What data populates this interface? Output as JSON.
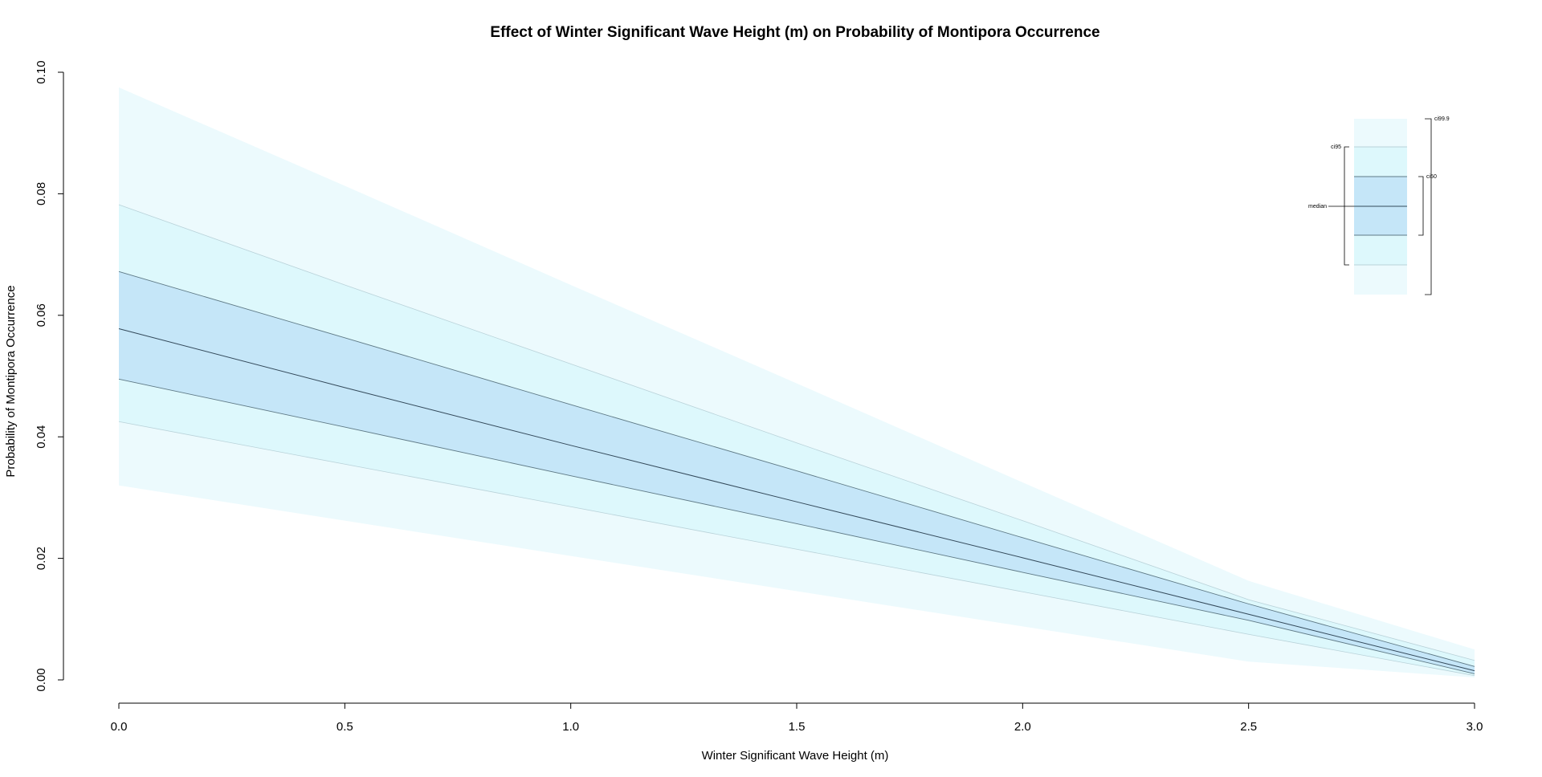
{
  "chart_data": {
    "type": "area",
    "title": "Effect of Winter Significant Wave Height (m) on Probability of Montipora Occurrence",
    "xlabel": "Winter Significant Wave Height (m)",
    "ylabel": "Probability of Montipora Occurrence",
    "xlim": [
      0.0,
      3.0
    ],
    "ylim": [
      0.0,
      0.1
    ],
    "grid": false,
    "legend_position": "top-right",
    "x_ticks": [
      "0.0",
      "0.5",
      "1.0",
      "1.5",
      "2.0",
      "2.5",
      "3.0"
    ],
    "y_ticks": [
      "0.00",
      "0.02",
      "0.04",
      "0.06",
      "0.08",
      "0.10"
    ],
    "x": [
      0.0,
      0.5,
      1.0,
      1.5,
      2.0,
      2.5,
      3.0
    ],
    "median": [
      0.0578,
      0.0481,
      0.0386,
      0.0293,
      0.0201,
      0.0108,
      0.0015
    ],
    "bands": [
      {
        "name": "ci99.9",
        "lower": [
          0.032,
          0.0262,
          0.0204,
          0.0146,
          0.0088,
          0.003,
          0.0004
        ],
        "upper": [
          0.0975,
          0.0813,
          0.065,
          0.0488,
          0.0325,
          0.0163,
          0.005
        ]
      },
      {
        "name": "ci95",
        "lower": [
          0.0425,
          0.0355,
          0.0285,
          0.0215,
          0.0145,
          0.0075,
          0.0007
        ],
        "upper": [
          0.0782,
          0.065,
          0.052,
          0.039,
          0.0262,
          0.0132,
          0.0032
        ]
      },
      {
        "name": "ci50",
        "lower": [
          0.0495,
          0.0416,
          0.0336,
          0.0257,
          0.0177,
          0.0098,
          0.001
        ],
        "upper": [
          0.0672,
          0.0563,
          0.0453,
          0.0344,
          0.0234,
          0.0125,
          0.0022
        ]
      }
    ],
    "colors": {
      "ci99.9": "#ECFAFD",
      "ci95": "#DDF8FC",
      "ci50": "#C5E6F8",
      "band_edge_light": "#B9D2D9",
      "band_edge_dark": "#5F7A86",
      "median_line": "#33495A",
      "axis": "#000000"
    },
    "legend": {
      "labels": {
        "ci99_9": "ci99.9",
        "ci95": "ci95",
        "ci50": "ci50",
        "median": "median"
      }
    }
  }
}
